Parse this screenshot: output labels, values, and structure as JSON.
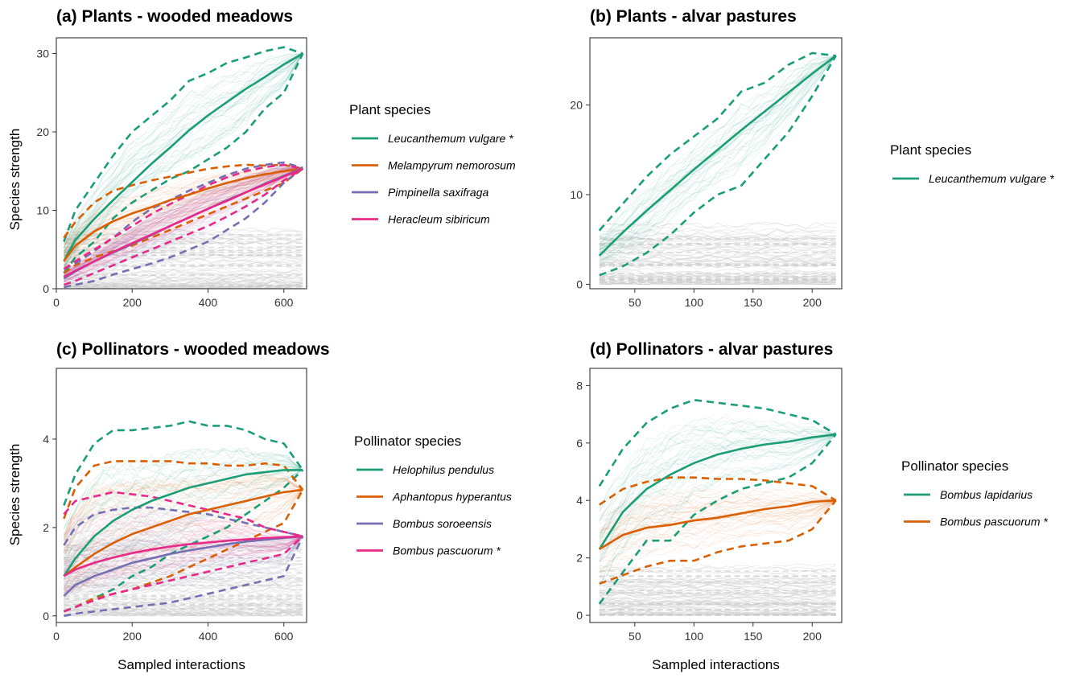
{
  "chart_data": [
    {
      "id": "a",
      "type": "line",
      "title": "(a)  Plants - wooded meadows",
      "xlabel": "",
      "ylabel": "Species strength",
      "xlim": [
        0,
        660
      ],
      "ylim": [
        0,
        32
      ],
      "xticks": [
        0,
        200,
        400,
        600
      ],
      "yticks": [
        0,
        10,
        20,
        30
      ],
      "legend_title": "Plant species",
      "legend_position": "right",
      "series": [
        {
          "name": "Leucanthemum vulgare *",
          "color": "#1b9e77",
          "x": [
            20,
            50,
            100,
            150,
            200,
            250,
            300,
            350,
            400,
            450,
            500,
            550,
            600,
            650
          ],
          "mean": [
            3.5,
            6.2,
            8.9,
            11.3,
            13.6,
            15.9,
            18.0,
            20.2,
            22.1,
            23.8,
            25.5,
            27.0,
            28.6,
            30.0
          ],
          "upper": [
            6,
            10,
            13.5,
            17,
            20,
            22,
            24,
            26.5,
            27.5,
            28.8,
            29.5,
            30.3,
            30.8,
            30.0
          ],
          "lower": [
            2,
            4,
            6,
            9,
            11,
            12.5,
            14,
            15,
            16.5,
            18,
            20,
            23,
            25,
            30.0
          ]
        },
        {
          "name": "Melampyrum nemorosum",
          "color": "#d95f02",
          "x": [
            20,
            50,
            100,
            150,
            200,
            250,
            300,
            350,
            400,
            450,
            500,
            550,
            600,
            650
          ],
          "mean": [
            3.5,
            5.5,
            7.3,
            8.6,
            9.6,
            10.4,
            11.3,
            12.0,
            12.8,
            13.5,
            14.1,
            14.6,
            15.0,
            15.3
          ],
          "upper": [
            6.5,
            8.5,
            11.0,
            12.5,
            13.2,
            13.8,
            14.3,
            14.8,
            15.3,
            15.6,
            15.8,
            15.7,
            15.8,
            15.3
          ],
          "lower": [
            2,
            3,
            4,
            4.8,
            5.5,
            6.5,
            7.5,
            8.5,
            9.5,
            10.5,
            11.5,
            12.5,
            13.5,
            15.3
          ]
        },
        {
          "name": "Pimpinella saxifraga",
          "color": "#7570b3",
          "x": [
            20,
            50,
            100,
            150,
            200,
            250,
            300,
            350,
            400,
            450,
            500,
            550,
            600,
            650
          ],
          "mean": [
            1.3,
            2.2,
            3.5,
            4.6,
            5.7,
            6.8,
            8.0,
            9.1,
            10.2,
            11.3,
            12.3,
            13.4,
            14.4,
            15.4
          ],
          "upper": [
            2.5,
            3.2,
            4.8,
            6.5,
            8.5,
            10.2,
            11.3,
            12.5,
            13.5,
            14.5,
            15.3,
            15.8,
            16.1,
            15.4
          ],
          "lower": [
            0.2,
            0.5,
            1.0,
            1.8,
            2.5,
            3.2,
            4.0,
            5.0,
            6.0,
            7.5,
            9.0,
            11.0,
            13.5,
            15.4
          ]
        },
        {
          "name": "Heracleum sibiricum",
          "color": "#e7298a",
          "x": [
            20,
            50,
            100,
            150,
            200,
            250,
            300,
            350,
            400,
            450,
            500,
            550,
            600,
            650
          ],
          "mean": [
            1.5,
            2.3,
            3.5,
            4.7,
            5.8,
            6.9,
            8.0,
            9.1,
            10.2,
            11.2,
            12.3,
            13.3,
            14.3,
            15.3
          ],
          "upper": [
            2.5,
            3.5,
            5.0,
            6.5,
            8.0,
            9.5,
            10.8,
            12.0,
            13.2,
            14.2,
            15.0,
            15.5,
            15.8,
            15.3
          ],
          "lower": [
            0.5,
            1.0,
            2.0,
            3.0,
            4.0,
            5.0,
            6.0,
            7.0,
            8.0,
            9.2,
            10.5,
            12.0,
            13.8,
            15.3
          ]
        }
      ]
    },
    {
      "id": "b",
      "type": "line",
      "title": "(b)  Plants - alvar pastures",
      "xlabel": "",
      "ylabel": "",
      "xlim": [
        12,
        225
      ],
      "ylim": [
        -0.5,
        27.5
      ],
      "xticks": [
        50,
        100,
        150,
        200
      ],
      "yticks": [
        0,
        10,
        20
      ],
      "legend_title": "Plant species",
      "legend_position": "right",
      "series": [
        {
          "name": "Leucanthemum vulgare *",
          "color": "#1b9e77",
          "x": [
            20,
            40,
            60,
            80,
            100,
            120,
            140,
            160,
            180,
            200,
            220
          ],
          "mean": [
            3.2,
            5.8,
            8.2,
            10.5,
            12.8,
            15.0,
            17.2,
            19.3,
            21.4,
            23.5,
            25.5
          ],
          "upper": [
            6.0,
            9.0,
            12.0,
            14.5,
            16.5,
            18.5,
            21.5,
            22.5,
            24.5,
            25.8,
            25.5
          ],
          "lower": [
            1.0,
            2.0,
            3.5,
            5.5,
            8.0,
            10.0,
            11.0,
            14.0,
            17.0,
            21.0,
            25.5
          ]
        }
      ]
    },
    {
      "id": "c",
      "type": "line",
      "title": "(c)  Pollinators - wooded meadows",
      "xlabel": "Sampled interactions",
      "ylabel": "Species strength",
      "xlim": [
        0,
        660
      ],
      "ylim": [
        -0.15,
        5.6
      ],
      "xticks": [
        0,
        200,
        400,
        600
      ],
      "yticks": [
        0,
        2,
        4
      ],
      "legend_title": "Pollinator species",
      "legend_position": "right",
      "series": [
        {
          "name": "Helophilus pendulus",
          "color": "#1b9e77",
          "x": [
            20,
            50,
            100,
            150,
            200,
            250,
            300,
            350,
            400,
            450,
            500,
            550,
            600,
            650
          ],
          "mean": [
            0.9,
            1.3,
            1.8,
            2.15,
            2.4,
            2.6,
            2.75,
            2.9,
            3.0,
            3.1,
            3.2,
            3.25,
            3.3,
            3.3
          ],
          "upper": [
            2.5,
            3.2,
            3.9,
            4.2,
            4.2,
            4.25,
            4.3,
            4.4,
            4.3,
            4.3,
            4.2,
            4.0,
            3.9,
            3.3
          ],
          "lower": [
            0.1,
            0.2,
            0.4,
            0.6,
            0.9,
            1.1,
            1.4,
            1.6,
            1.8,
            2.0,
            2.3,
            2.6,
            2.9,
            3.3
          ]
        },
        {
          "name": "Aphantopus hyperantus",
          "color": "#d95f02",
          "x": [
            20,
            50,
            100,
            150,
            200,
            250,
            300,
            350,
            400,
            450,
            500,
            550,
            600,
            650
          ],
          "mean": [
            0.9,
            1.1,
            1.4,
            1.65,
            1.85,
            2.0,
            2.15,
            2.3,
            2.4,
            2.5,
            2.6,
            2.7,
            2.8,
            2.85
          ],
          "upper": [
            2.2,
            2.9,
            3.4,
            3.5,
            3.5,
            3.5,
            3.5,
            3.45,
            3.45,
            3.4,
            3.4,
            3.45,
            3.4,
            2.85
          ],
          "lower": [
            0.1,
            0.2,
            0.4,
            0.5,
            0.6,
            0.75,
            0.9,
            1.1,
            1.3,
            1.5,
            1.7,
            1.9,
            2.1,
            2.85
          ]
        },
        {
          "name": "Bombus soroeensis",
          "color": "#7570b3",
          "x": [
            20,
            50,
            100,
            150,
            200,
            250,
            300,
            350,
            400,
            450,
            500,
            550,
            600,
            650
          ],
          "mean": [
            0.45,
            0.7,
            0.9,
            1.05,
            1.2,
            1.3,
            1.4,
            1.48,
            1.55,
            1.62,
            1.68,
            1.72,
            1.76,
            1.8
          ],
          "upper": [
            1.6,
            2.0,
            2.3,
            2.4,
            2.45,
            2.45,
            2.4,
            2.35,
            2.3,
            2.2,
            2.1,
            2.0,
            1.9,
            1.8
          ],
          "lower": [
            0.0,
            0.05,
            0.1,
            0.15,
            0.2,
            0.25,
            0.3,
            0.4,
            0.5,
            0.6,
            0.7,
            0.8,
            0.9,
            1.8
          ]
        },
        {
          "name": "Bombus pascuorum *",
          "color": "#e7298a",
          "x": [
            20,
            50,
            100,
            150,
            200,
            250,
            300,
            350,
            400,
            450,
            500,
            550,
            600,
            650
          ],
          "mean": [
            0.9,
            1.05,
            1.2,
            1.32,
            1.42,
            1.5,
            1.57,
            1.62,
            1.66,
            1.7,
            1.73,
            1.76,
            1.78,
            1.8
          ],
          "upper": [
            2.3,
            2.6,
            2.7,
            2.8,
            2.75,
            2.7,
            2.6,
            2.5,
            2.4,
            2.3,
            2.2,
            2.0,
            1.9,
            1.8
          ],
          "lower": [
            0.1,
            0.2,
            0.35,
            0.5,
            0.6,
            0.7,
            0.8,
            0.9,
            1.0,
            1.1,
            1.2,
            1.3,
            1.4,
            1.8
          ]
        }
      ]
    },
    {
      "id": "d",
      "type": "line",
      "title": "(d)  Pollinators - alvar pastures",
      "xlabel": "Sampled interactions",
      "ylabel": "",
      "xlim": [
        12,
        225
      ],
      "ylim": [
        -0.25,
        8.6
      ],
      "xticks": [
        50,
        100,
        150,
        200
      ],
      "yticks": [
        0,
        2,
        4,
        6,
        8
      ],
      "legend_title": "Pollinator species",
      "legend_position": "right",
      "series": [
        {
          "name": "Bombus lapidarius",
          "color": "#1b9e77",
          "x": [
            20,
            40,
            60,
            80,
            100,
            120,
            140,
            160,
            180,
            200,
            220
          ],
          "mean": [
            2.3,
            3.6,
            4.4,
            4.9,
            5.3,
            5.6,
            5.8,
            5.95,
            6.05,
            6.2,
            6.3
          ],
          "upper": [
            4.5,
            5.8,
            6.7,
            7.2,
            7.5,
            7.4,
            7.3,
            7.2,
            7.0,
            6.8,
            6.3
          ],
          "lower": [
            0.4,
            1.5,
            2.6,
            2.6,
            3.5,
            4.0,
            4.4,
            4.6,
            4.8,
            5.3,
            6.3
          ]
        },
        {
          "name": "Bombus pascuorum *",
          "color": "#d95f02",
          "x": [
            20,
            40,
            60,
            80,
            100,
            120,
            140,
            160,
            180,
            200,
            220
          ],
          "mean": [
            2.3,
            2.8,
            3.05,
            3.15,
            3.3,
            3.4,
            3.55,
            3.7,
            3.8,
            3.95,
            4.0
          ],
          "upper": [
            3.85,
            4.4,
            4.65,
            4.8,
            4.8,
            4.75,
            4.75,
            4.7,
            4.6,
            4.5,
            4.0
          ],
          "lower": [
            1.1,
            1.4,
            1.7,
            1.9,
            1.9,
            2.2,
            2.4,
            2.5,
            2.6,
            3.0,
            4.0
          ]
        }
      ]
    }
  ]
}
